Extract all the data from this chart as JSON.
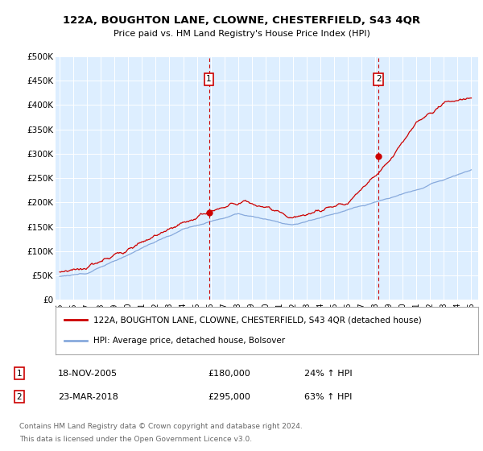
{
  "title": "122A, BOUGHTON LANE, CLOWNE, CHESTERFIELD, S43 4QR",
  "subtitle": "Price paid vs. HM Land Registry's House Price Index (HPI)",
  "background_color": "#ffffff",
  "plot_bg_color": "#ddeeff",
  "ylabel_ticks": [
    "£0",
    "£50K",
    "£100K",
    "£150K",
    "£200K",
    "£250K",
    "£300K",
    "£350K",
    "£400K",
    "£450K",
    "£500K"
  ],
  "ytick_values": [
    0,
    50000,
    100000,
    150000,
    200000,
    250000,
    300000,
    350000,
    400000,
    450000,
    500000
  ],
  "xmin": 1994.7,
  "xmax": 2025.5,
  "ymin": 0,
  "ymax": 500000,
  "sale1_date": 2005.88,
  "sale1_price": 180000,
  "sale1_label": "1",
  "sale2_date": 2018.23,
  "sale2_price": 295000,
  "sale2_label": "2",
  "legend_line1": "122A, BOUGHTON LANE, CLOWNE, CHESTERFIELD, S43 4QR (detached house)",
  "legend_line2": "HPI: Average price, detached house, Bolsover",
  "footer1": "Contains HM Land Registry data © Crown copyright and database right 2024.",
  "footer2": "This data is licensed under the Open Government Licence v3.0.",
  "red_color": "#cc0000",
  "blue_color": "#88aadd",
  "ann1_date": "18-NOV-2005",
  "ann1_price": "£180,000",
  "ann1_pct": "24% ↑ HPI",
  "ann2_date": "23-MAR-2018",
  "ann2_price": "£295,000",
  "ann2_pct": "63% ↑ HPI"
}
